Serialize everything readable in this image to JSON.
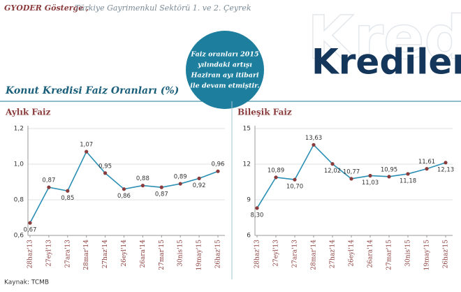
{
  "header": {
    "brand": "GYODER Gösterge ,",
    "subtitle": "Türkiye Gayrimenkul Sektörü 1. ve 2. Çeyrek",
    "title": "Krediler",
    "note": [
      "Faiz oranları 2015",
      "yılındaki artışı",
      "Haziran ayı itibari",
      "ile devam etmiştir."
    ],
    "section": "Konut Kredisi Faiz Oranları (%)",
    "source": "Kaynak: TCMB"
  },
  "chart_data": [
    {
      "type": "line",
      "title": "Aylık Faiz",
      "categories": [
        "28haz'13",
        "27eyl'13",
        "27ara'13",
        "28mar'14",
        "27haz'14",
        "26eyl'14",
        "26ara'14",
        "27mar'15",
        "30nis'15",
        "19may'15",
        "26haz'15"
      ],
      "values": [
        0.67,
        0.87,
        0.85,
        1.07,
        0.95,
        0.86,
        0.88,
        0.87,
        0.89,
        0.92,
        0.96
      ],
      "value_labels": [
        "0,67",
        "0,87",
        "0,85",
        "1,07",
        "0,95",
        "0,86",
        "0,88",
        "0,87",
        "0,89",
        "0,92",
        "0,96"
      ],
      "color": "#2a8fb3",
      "marker_color": "#8a3b3b",
      "ylim": [
        0.6,
        1.2
      ],
      "yticks": [
        {
          "value": 0.6,
          "label": "0,6"
        },
        {
          "value": 0.8,
          "label": "0,8"
        },
        {
          "value": 1.0,
          "label": "1,0"
        },
        {
          "value": 1.2,
          "label": "1,2"
        }
      ],
      "grid": true
    },
    {
      "type": "line",
      "title": "Bileşik Faiz",
      "categories": [
        "28haz'13",
        "27eyl'13",
        "27ara'13",
        "28mar'14",
        "27haz'14",
        "26eyl'14",
        "26ara'14",
        "27mar'15",
        "30nis'15",
        "19may'15",
        "26haz'15"
      ],
      "values": [
        8.3,
        10.89,
        10.7,
        13.63,
        12.02,
        10.77,
        11.03,
        10.95,
        11.18,
        11.61,
        12.13
      ],
      "value_labels": [
        "8,30",
        "10,89",
        "10,70",
        "13,63",
        "12,02",
        "10,77",
        "11,03",
        "10,95",
        "11,18",
        "11,61",
        "12,13"
      ],
      "color": "#2a8fb3",
      "marker_color": "#8a3b3b",
      "ylim": [
        6,
        15
      ],
      "yticks": [
        6,
        9,
        12,
        15
      ],
      "grid": true
    }
  ]
}
